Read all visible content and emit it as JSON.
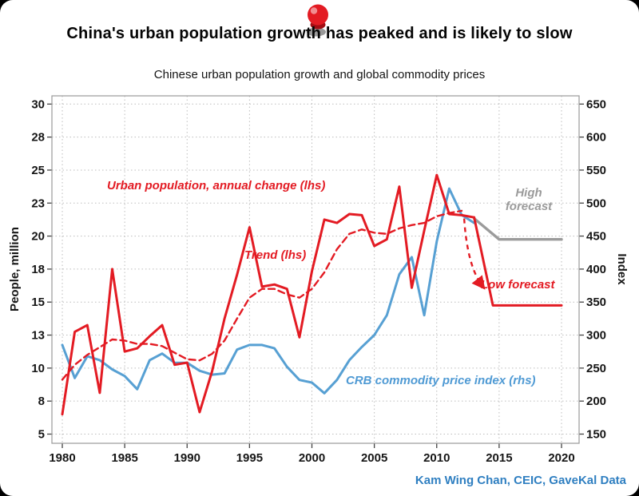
{
  "page": {
    "title": "China's urban population growth has peaked and is likely to slow",
    "source": "Kam Wing Chan, CEIC, GaveKal Data"
  },
  "chart_data": {
    "type": "line",
    "title": "Chinese urban population growth and global commodity prices",
    "x_ticks": [
      1980,
      1985,
      1990,
      1995,
      2000,
      2005,
      2010,
      2015,
      2020
    ],
    "left_axis": {
      "label": "People, million",
      "tick_values": [
        5,
        8,
        10,
        13,
        15,
        18,
        20,
        23,
        25,
        28,
        30
      ]
    },
    "right_axis": {
      "label": "Index",
      "tick_values": [
        150,
        200,
        250,
        300,
        350,
        400,
        450,
        500,
        550,
        600,
        650
      ]
    },
    "grid": true,
    "series": [
      {
        "id": "crb-commodity-index",
        "name": "CRB commodity price index (rhs)",
        "axis": "right",
        "color": "#57a0d3",
        "width": 3,
        "start_year": 1980,
        "values": [
          285,
          235,
          268,
          262,
          248,
          238,
          218,
          262,
          272,
          258,
          258,
          246,
          240,
          242,
          278,
          285,
          285,
          280,
          252,
          232,
          228,
          212,
          232,
          262,
          282,
          300,
          330,
          392,
          418,
          330,
          442,
          522,
          482,
          470
        ]
      },
      {
        "id": "trend",
        "name": "Trend (lhs)",
        "axis": "left",
        "color": "#e31b23",
        "width": 2.4,
        "dash": "8 5",
        "start_year": 1980,
        "values": [
          9.3,
          10.3,
          11.2,
          11.9,
          12.6,
          12.5,
          12.2,
          12.2,
          12.0,
          11.4,
          10.8,
          10.7,
          11.3,
          12.5,
          14.0,
          15.4,
          16.2,
          16.2,
          15.7,
          15.4,
          16.2,
          17.7,
          19.2,
          20.2,
          20.6,
          20.3,
          20.2,
          20.7,
          21.0,
          21.2,
          21.8,
          22.1,
          22.3
        ]
      },
      {
        "id": "urban-population-annual-change",
        "name": "Urban population, annual change (lhs)",
        "axis": "left",
        "color": "#e31b23",
        "width": 3,
        "start_year": 1980,
        "values": [
          6.8,
          13.2,
          13.6,
          8.5,
          18.0,
          11.5,
          11.8,
          12.9,
          13.6,
          10.3,
          10.5,
          7.0,
          9.8,
          14.0,
          17.5,
          20.8,
          16.4,
          16.6,
          16.2,
          12.8,
          17.8,
          21.5,
          21.2,
          22.0,
          21.9,
          19.4,
          19.8,
          24.0,
          16.3,
          20.5,
          24.7,
          22.0,
          21.9,
          21.7
        ]
      },
      {
        "id": "high-forecast",
        "name": "High forecast",
        "axis": "left",
        "color": "#9b9b9b",
        "width": 3.4,
        "years": [
          2013,
          2015,
          2020
        ],
        "values": [
          21.6,
          19.8,
          19.8
        ]
      },
      {
        "id": "low-forecast",
        "name": "Low forecast",
        "axis": "left",
        "color": "#e31b23",
        "width": 3,
        "years": [
          2013,
          2014.5,
          2020
        ],
        "values": [
          21.7,
          14.8,
          14.8
        ]
      }
    ],
    "trend_arrow": {
      "from_year": 2012.2,
      "from_value": 21.6,
      "to_year": 2013.7,
      "to_value": 16.4,
      "color": "#e31b23"
    },
    "annotations": [
      {
        "text": "Urban population, annual change (lhs)",
        "color": "red"
      },
      {
        "text": "Trend (lhs)",
        "color": "red"
      },
      {
        "text": "High forecast",
        "color": "gray"
      },
      {
        "text": "Low forecast",
        "color": "red"
      },
      {
        "text": "CRB commodity price index (rhs)",
        "color": "blue"
      }
    ]
  }
}
